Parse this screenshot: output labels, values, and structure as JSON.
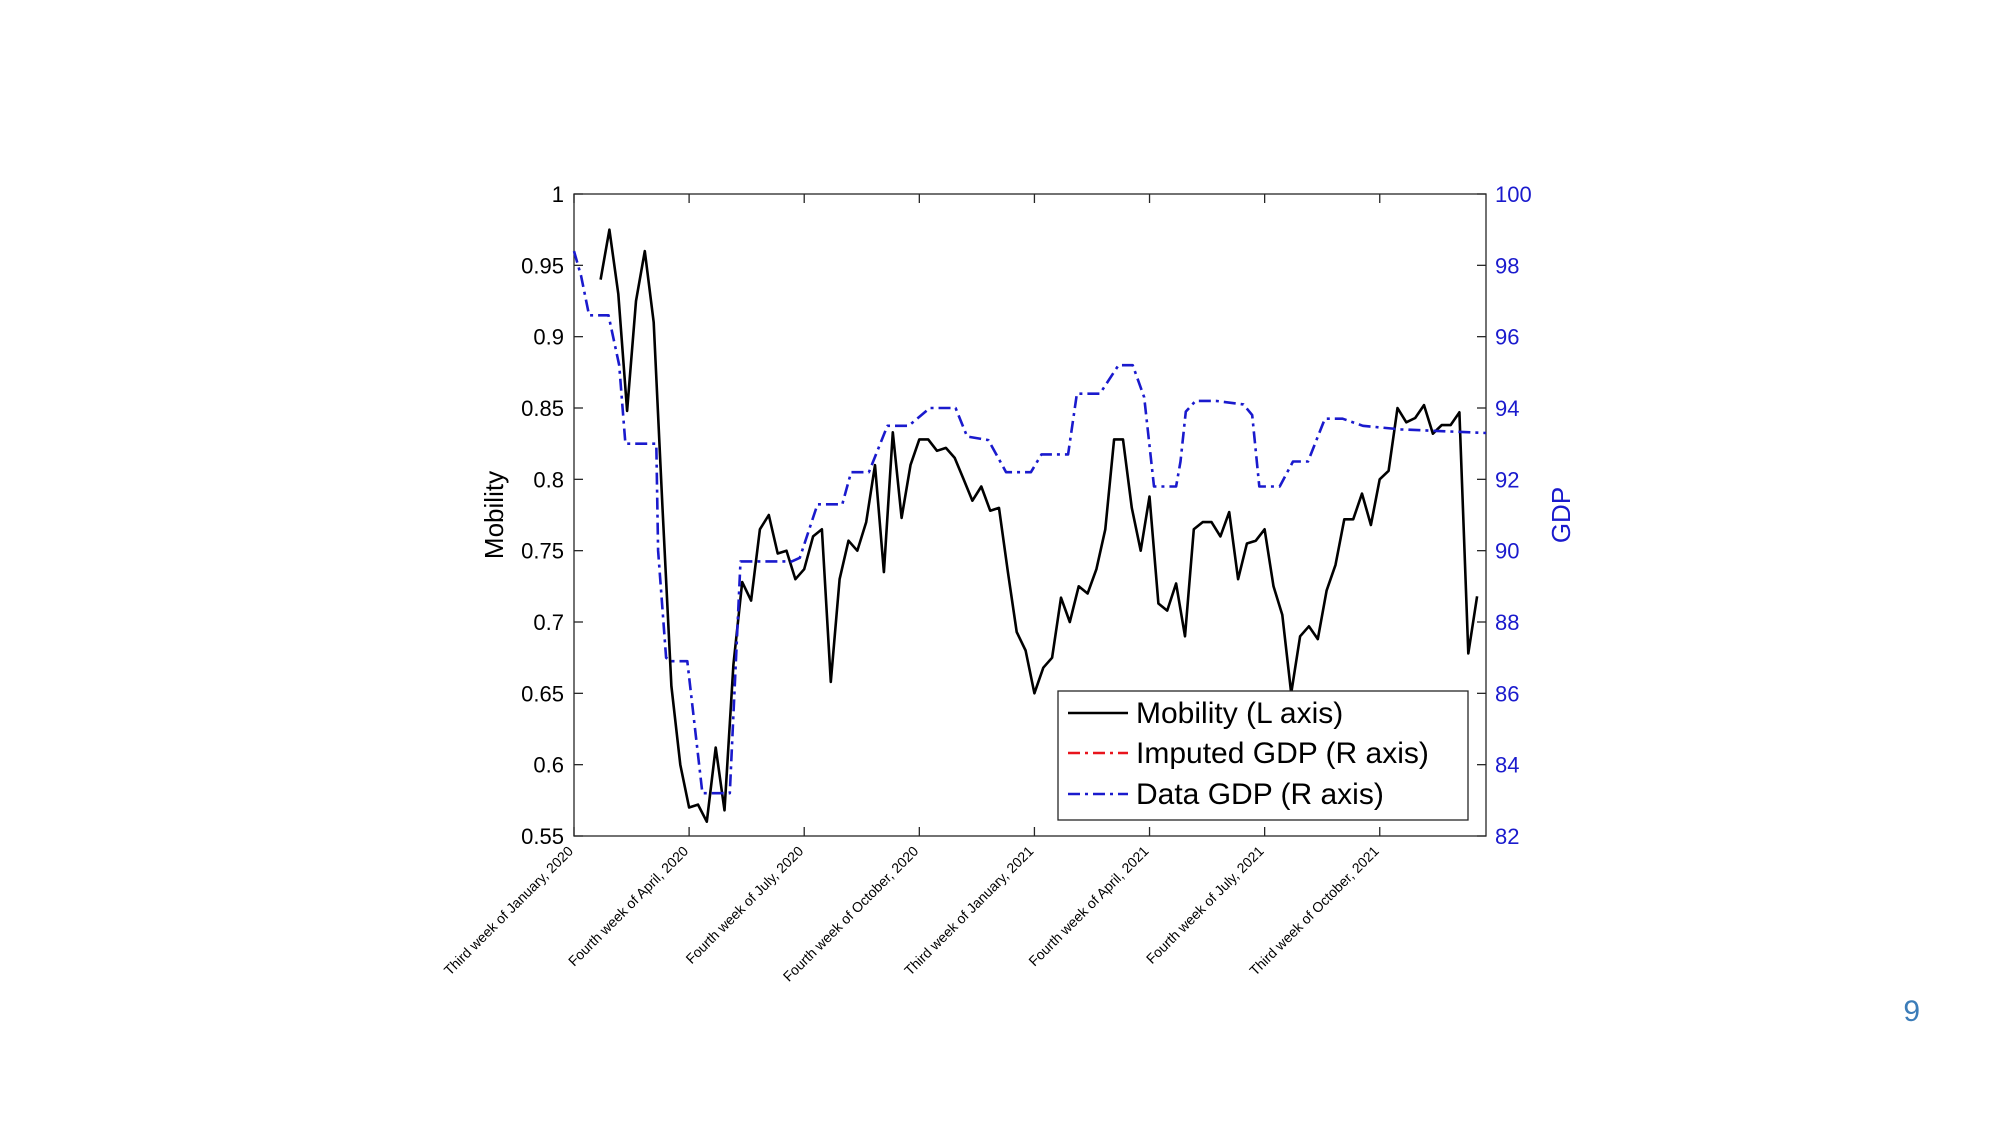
{
  "slide": {
    "page_number": "9"
  },
  "colors": {
    "mobility": "#000000",
    "imputed": "#e8141c",
    "data_gdp": "#1a1acd",
    "right_axis": "#1a1acd"
  },
  "chart_data": {
    "type": "line",
    "title": "",
    "xlabel": "",
    "ylabel_left": "Mobility",
    "ylabel_right": "GDP",
    "ylim_left": [
      0.55,
      1
    ],
    "ylim_right": [
      82,
      100
    ],
    "yticks_left": [
      "0.55",
      "0.6",
      "0.65",
      "0.7",
      "0.75",
      "0.8",
      "0.85",
      "0.9",
      "0.95",
      "1"
    ],
    "yticks_right": [
      "82",
      "84",
      "86",
      "88",
      "90",
      "92",
      "94",
      "96",
      "98",
      "100"
    ],
    "x_week_range": [
      0,
      103
    ],
    "x_ticks": [
      {
        "week": 0,
        "label": "Third week of January, 2020"
      },
      {
        "week": 13,
        "label": "Fourth week of April, 2020"
      },
      {
        "week": 26,
        "label": "Fourth week of July, 2020"
      },
      {
        "week": 39,
        "label": "Fourth week of October, 2020"
      },
      {
        "week": 52,
        "label": "Third week of January, 2021"
      },
      {
        "week": 65,
        "label": "Fourth week of April, 2021"
      },
      {
        "week": 78,
        "label": "Fourth week of July, 2021"
      },
      {
        "week": 91,
        "label": "Third week of October, 2021"
      }
    ],
    "legend": {
      "position": "bottom-right",
      "entries": [
        "Mobility (L axis)",
        "Imputed GDP (R axis)",
        "Data GDP (R axis)"
      ]
    },
    "series": [
      {
        "name": "Mobility (L axis)",
        "axis": "left",
        "style": "solid",
        "points": [
          [
            3,
            0.94
          ],
          [
            4,
            0.975
          ],
          [
            5,
            0.93
          ],
          [
            6,
            0.848
          ],
          [
            7,
            0.925
          ],
          [
            8,
            0.96
          ],
          [
            9,
            0.91
          ],
          [
            10,
            0.78
          ],
          [
            11,
            0.655
          ],
          [
            12,
            0.6
          ],
          [
            13,
            0.57
          ],
          [
            14,
            0.572
          ],
          [
            15,
            0.56
          ],
          [
            16,
            0.612
          ],
          [
            17,
            0.568
          ],
          [
            18,
            0.67
          ],
          [
            19,
            0.728
          ],
          [
            20,
            0.715
          ],
          [
            21,
            0.765
          ],
          [
            22,
            0.775
          ],
          [
            23,
            0.748
          ],
          [
            24,
            0.75
          ],
          [
            25,
            0.73
          ],
          [
            26,
            0.737
          ],
          [
            27,
            0.76
          ],
          [
            28,
            0.765
          ],
          [
            29,
            0.658
          ],
          [
            30,
            0.73
          ],
          [
            31,
            0.757
          ],
          [
            32,
            0.75
          ],
          [
            33,
            0.77
          ],
          [
            34,
            0.81
          ],
          [
            35,
            0.735
          ],
          [
            36,
            0.833
          ],
          [
            37,
            0.773
          ],
          [
            38,
            0.81
          ],
          [
            39,
            0.828
          ],
          [
            40,
            0.828
          ],
          [
            41,
            0.82
          ],
          [
            42,
            0.822
          ],
          [
            43,
            0.815
          ],
          [
            44,
            0.8
          ],
          [
            45,
            0.785
          ],
          [
            46,
            0.795
          ],
          [
            47,
            0.778
          ],
          [
            48,
            0.78
          ],
          [
            49,
            0.735
          ],
          [
            50,
            0.693
          ],
          [
            51,
            0.68
          ],
          [
            52,
            0.65
          ],
          [
            53,
            0.668
          ],
          [
            54,
            0.675
          ],
          [
            55,
            0.717
          ],
          [
            56,
            0.7
          ],
          [
            57,
            0.725
          ],
          [
            58,
            0.72
          ],
          [
            59,
            0.737
          ],
          [
            60,
            0.765
          ],
          [
            61,
            0.828
          ],
          [
            62,
            0.828
          ],
          [
            63,
            0.78
          ],
          [
            64,
            0.75
          ],
          [
            65,
            0.788
          ],
          [
            66,
            0.713
          ],
          [
            67,
            0.708
          ],
          [
            68,
            0.727
          ],
          [
            69,
            0.69
          ],
          [
            70,
            0.765
          ],
          [
            71,
            0.77
          ],
          [
            72,
            0.77
          ],
          [
            73,
            0.76
          ],
          [
            74,
            0.777
          ],
          [
            75,
            0.73
          ],
          [
            76,
            0.755
          ],
          [
            77,
            0.757
          ],
          [
            78,
            0.765
          ],
          [
            79,
            0.725
          ],
          [
            80,
            0.705
          ],
          [
            81,
            0.65
          ],
          [
            82,
            0.69
          ],
          [
            83,
            0.697
          ],
          [
            84,
            0.688
          ],
          [
            85,
            0.722
          ],
          [
            86,
            0.74
          ],
          [
            87,
            0.772
          ],
          [
            88,
            0.772
          ],
          [
            89,
            0.79
          ],
          [
            90,
            0.768
          ],
          [
            91,
            0.8
          ],
          [
            92,
            0.806
          ],
          [
            93,
            0.85
          ],
          [
            94,
            0.84
          ],
          [
            95,
            0.843
          ],
          [
            96,
            0.852
          ],
          [
            97,
            0.832
          ],
          [
            98,
            0.838
          ],
          [
            99,
            0.838
          ],
          [
            100,
            0.847
          ],
          [
            101,
            0.678
          ],
          [
            102,
            0.718
          ]
        ]
      },
      {
        "name": "Imputed GDP (R axis)",
        "axis": "right",
        "style": "dash-dot",
        "points": []
      },
      {
        "name": "Data GDP (R axis)",
        "axis": "right",
        "style": "dash-dot",
        "points": [
          [
            0,
            98.4
          ],
          [
            0.8,
            97.7
          ],
          [
            1.7,
            96.6
          ],
          [
            3.9,
            96.6
          ],
          [
            5.1,
            95.2
          ],
          [
            5.8,
            93
          ],
          [
            9.3,
            93
          ],
          [
            9.5,
            90
          ],
          [
            10.4,
            87
          ],
          [
            10.9,
            86.9
          ],
          [
            12.8,
            86.9
          ],
          [
            14.5,
            83.2
          ],
          [
            17.6,
            83.2
          ],
          [
            18.8,
            89.7
          ],
          [
            24.6,
            89.7
          ],
          [
            25.5,
            89.8
          ],
          [
            27.5,
            91.3
          ],
          [
            30.3,
            91.3
          ],
          [
            31.3,
            92.2
          ],
          [
            33.3,
            92.2
          ],
          [
            35.4,
            93.5
          ],
          [
            37.8,
            93.5
          ],
          [
            40.2,
            94
          ],
          [
            43.1,
            94
          ],
          [
            44.4,
            93.2
          ],
          [
            46.8,
            93.1
          ],
          [
            48.8,
            92.2
          ],
          [
            51.6,
            92.2
          ],
          [
            52.8,
            92.7
          ],
          [
            55.8,
            92.7
          ],
          [
            56.8,
            94.4
          ],
          [
            59.4,
            94.4
          ],
          [
            61.5,
            95.2
          ],
          [
            63.1,
            95.2
          ],
          [
            64.4,
            94.3
          ],
          [
            65.5,
            91.8
          ],
          [
            68,
            91.8
          ],
          [
            68.5,
            92.5
          ],
          [
            69.1,
            93.9
          ],
          [
            70.2,
            94.2
          ],
          [
            72.5,
            94.2
          ],
          [
            75.6,
            94.1
          ],
          [
            76.6,
            93.8
          ],
          [
            77.4,
            91.8
          ],
          [
            79.7,
            91.8
          ],
          [
            81.2,
            92.5
          ],
          [
            82.9,
            92.5
          ],
          [
            84.8,
            93.7
          ],
          [
            86.8,
            93.7
          ],
          [
            89.1,
            93.5
          ],
          [
            93.4,
            93.4
          ],
          [
            103,
            93.3
          ]
        ]
      }
    ]
  }
}
